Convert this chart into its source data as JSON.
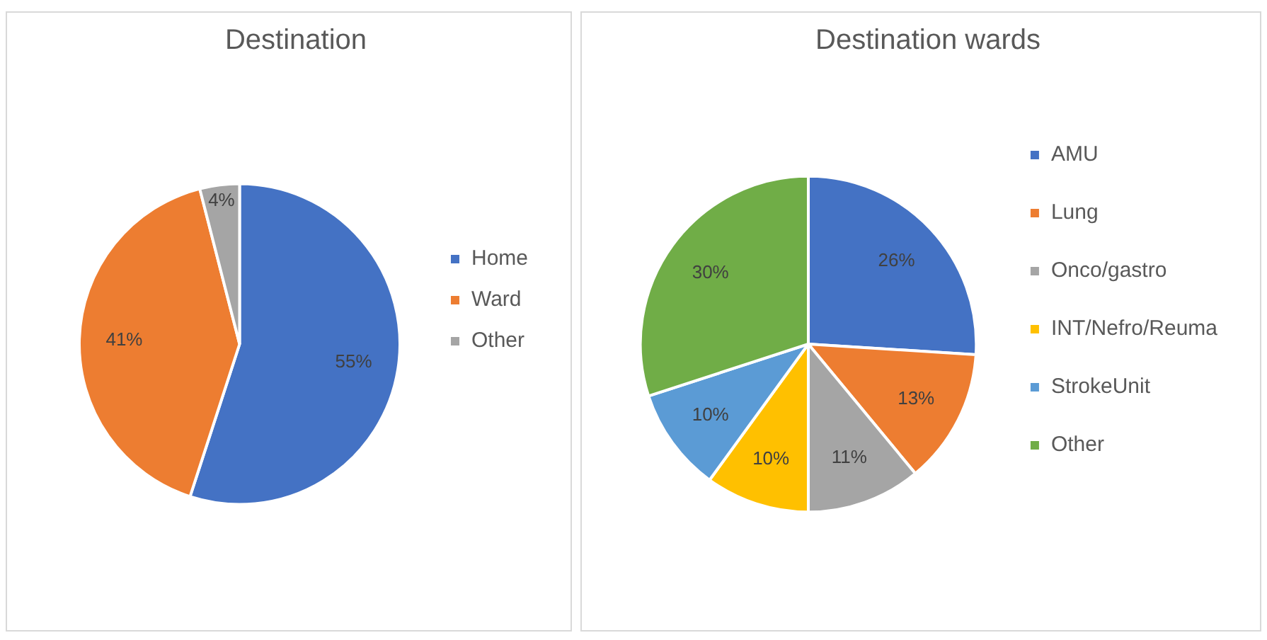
{
  "chart_data": [
    {
      "type": "pie",
      "title": "Destination",
      "categories": [
        "Home",
        "Ward",
        "Other"
      ],
      "values": [
        55,
        41,
        4
      ],
      "colors": [
        "#4472c4",
        "#ed7d31",
        "#a5a5a5"
      ],
      "value_labels": [
        "55%",
        "41%",
        "4%"
      ],
      "legend": "right"
    },
    {
      "type": "pie",
      "title": "Destination wards",
      "categories": [
        "AMU",
        "Lung",
        "Onco/gastro",
        "INT/Nefro/Reuma",
        "StrokeUnit",
        "Other"
      ],
      "values": [
        26,
        13,
        11,
        10,
        10,
        30
      ],
      "colors": [
        "#4472c4",
        "#ed7d31",
        "#a5a5a5",
        "#ffc000",
        "#5b9bd5",
        "#70ad47"
      ],
      "value_labels": [
        "26%",
        "13%",
        "11%",
        "10%",
        "10%",
        "30%"
      ],
      "legend": "right"
    }
  ]
}
